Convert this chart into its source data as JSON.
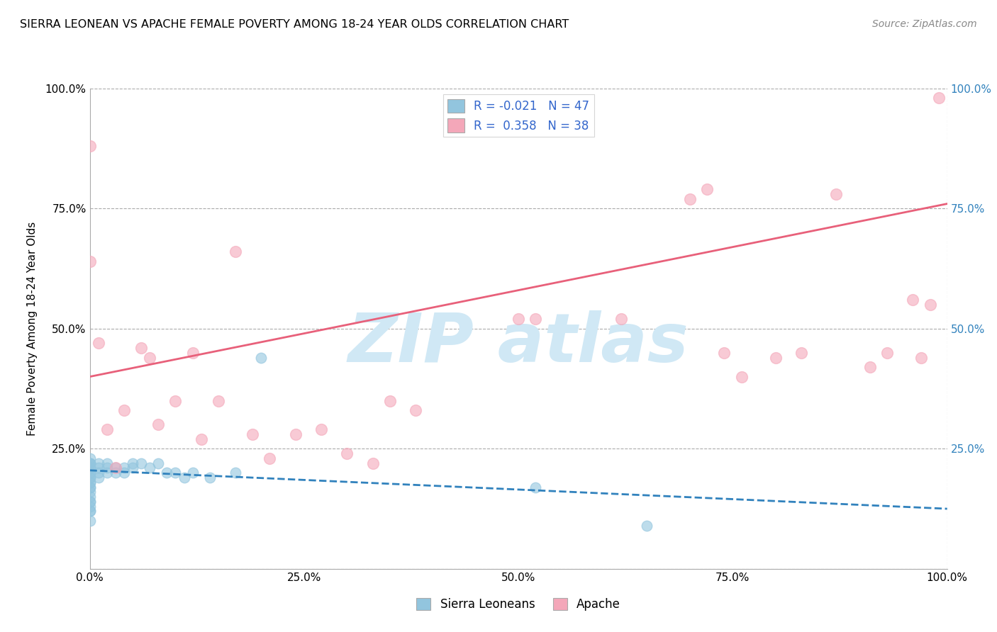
{
  "title": "SIERRA LEONEAN VS APACHE FEMALE POVERTY AMONG 18-24 YEAR OLDS CORRELATION CHART",
  "source": "Source: ZipAtlas.com",
  "ylabel": "Female Poverty Among 18-24 Year Olds",
  "xlim": [
    0.0,
    1.0
  ],
  "ylim": [
    0.0,
    1.0
  ],
  "x_ticks": [
    0.0,
    0.25,
    0.5,
    0.75,
    1.0
  ],
  "x_tick_labels": [
    "0.0%",
    "25.0%",
    "50.0%",
    "75.0%",
    "100.0%"
  ],
  "y_ticks": [
    0.0,
    0.25,
    0.5,
    0.75,
    1.0
  ],
  "y_tick_labels": [
    "",
    "25.0%",
    "50.0%",
    "75.0%",
    "100.0%"
  ],
  "sierra_color": "#92c5de",
  "apache_color": "#f4a7b9",
  "sierra_line_color": "#3182bd",
  "apache_line_color": "#e8607a",
  "watermark_color": "#d0e8f5",
  "sierra_x": [
    0.0,
    0.0,
    0.0,
    0.0,
    0.0,
    0.0,
    0.0,
    0.0,
    0.0,
    0.0,
    0.0,
    0.0,
    0.0,
    0.0,
    0.0,
    0.0,
    0.0,
    0.0,
    0.0,
    0.0,
    0.0,
    0.0,
    0.01,
    0.01,
    0.01,
    0.01,
    0.02,
    0.02,
    0.02,
    0.03,
    0.03,
    0.04,
    0.04,
    0.05,
    0.05,
    0.06,
    0.07,
    0.08,
    0.09,
    0.1,
    0.11,
    0.12,
    0.14,
    0.17,
    0.2,
    0.52,
    0.65
  ],
  "sierra_y": [
    0.1,
    0.12,
    0.14,
    0.16,
    0.17,
    0.18,
    0.19,
    0.2,
    0.21,
    0.22,
    0.22,
    0.23,
    0.22,
    0.21,
    0.2,
    0.19,
    0.18,
    0.17,
    0.15,
    0.14,
    0.13,
    0.12,
    0.22,
    0.21,
    0.2,
    0.19,
    0.22,
    0.21,
    0.2,
    0.21,
    0.2,
    0.21,
    0.2,
    0.22,
    0.21,
    0.22,
    0.21,
    0.22,
    0.2,
    0.2,
    0.19,
    0.2,
    0.19,
    0.2,
    0.44,
    0.17,
    0.09
  ],
  "apache_x": [
    0.0,
    0.0,
    0.01,
    0.02,
    0.03,
    0.04,
    0.06,
    0.07,
    0.08,
    0.1,
    0.12,
    0.13,
    0.15,
    0.17,
    0.19,
    0.21,
    0.24,
    0.27,
    0.3,
    0.33,
    0.35,
    0.38,
    0.5,
    0.52,
    0.62,
    0.7,
    0.72,
    0.74,
    0.76,
    0.8,
    0.83,
    0.87,
    0.91,
    0.93,
    0.96,
    0.97,
    0.98,
    0.99
  ],
  "apache_y": [
    0.88,
    0.64,
    0.47,
    0.29,
    0.21,
    0.33,
    0.46,
    0.44,
    0.3,
    0.35,
    0.45,
    0.27,
    0.35,
    0.66,
    0.28,
    0.23,
    0.28,
    0.29,
    0.24,
    0.22,
    0.35,
    0.33,
    0.52,
    0.52,
    0.52,
    0.77,
    0.79,
    0.45,
    0.4,
    0.44,
    0.45,
    0.78,
    0.42,
    0.45,
    0.56,
    0.44,
    0.55,
    0.98
  ]
}
